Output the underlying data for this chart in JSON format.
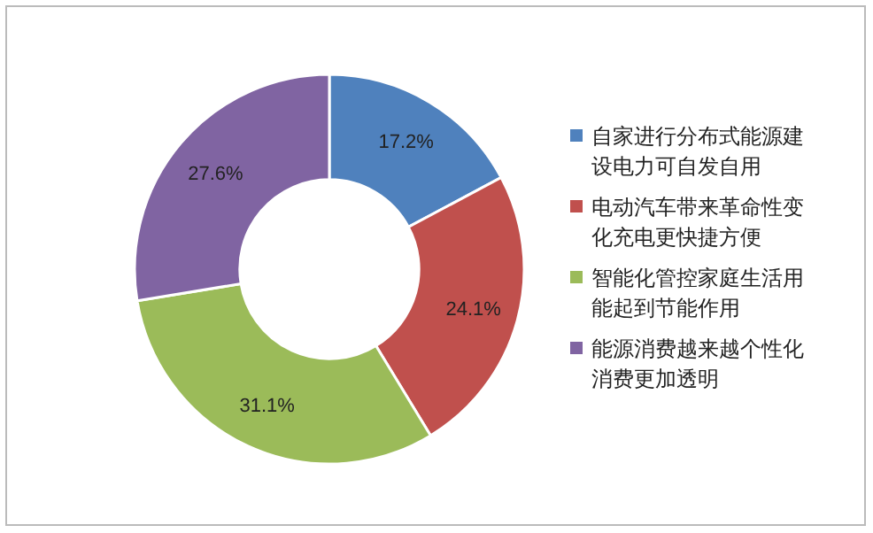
{
  "chart_data": {
    "type": "donut",
    "categories": [
      "自家进行分布式能源建设电力可自发自用",
      "电动汽车带来革命性变化充电更快捷方便",
      "智能化管控家庭生活用能起到节能作用",
      "能源消费越来越个性化消费更加透明"
    ],
    "values": [
      17.2,
      24.1,
      31.1,
      27.6
    ],
    "colors": [
      "#4f81bd",
      "#c0504d",
      "#9bbb59",
      "#8064a2"
    ],
    "value_labels": [
      "17.2%",
      "24.1%",
      "31.1%",
      "27.6%"
    ],
    "legend": "right"
  }
}
